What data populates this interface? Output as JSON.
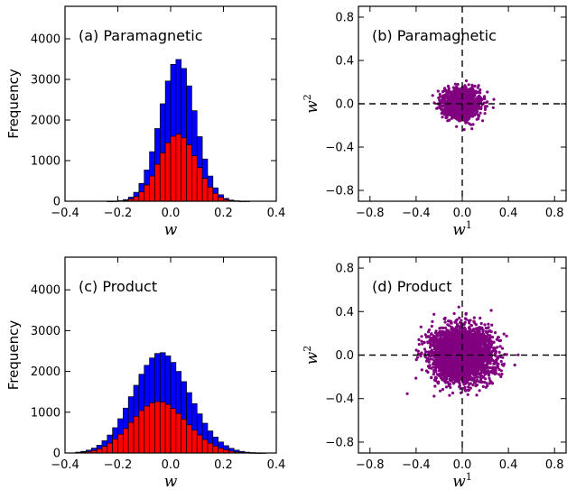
{
  "chart_data": [
    {
      "id": "a",
      "type": "bar",
      "title": "(a)   Paramagnetic",
      "xlabel": "w",
      "ylabel": "Frequency",
      "xlim": [
        -0.4,
        0.4
      ],
      "ylim": [
        0,
        4800
      ],
      "xticks": [
        "−0.4",
        "−0.2",
        "0.0",
        "0.2",
        "0.4"
      ],
      "yticks": [
        "0",
        "1000",
        "2000",
        "3000",
        "4000"
      ],
      "bin_width": 0.02,
      "bin_start": -0.36,
      "series": [
        {
          "color": "#0000ff",
          "values": [
            0,
            0,
            0,
            0,
            0,
            0,
            2,
            5,
            15,
            40,
            100,
            220,
            440,
            770,
            1220,
            1790,
            2400,
            2960,
            3370,
            3490,
            3270,
            2840,
            2230,
            1590,
            1040,
            620,
            330,
            160,
            70,
            28,
            10,
            3,
            1,
            0,
            0,
            0
          ]
        },
        {
          "color": "#ff0000",
          "values": [
            0,
            0,
            0,
            0,
            0,
            0,
            1,
            3,
            8,
            20,
            55,
            115,
            230,
            400,
            620,
            910,
            1190,
            1440,
            1600,
            1650,
            1560,
            1390,
            1120,
            830,
            560,
            350,
            190,
            95,
            40,
            16,
            6,
            2,
            0,
            0,
            0,
            0
          ]
        }
      ]
    },
    {
      "id": "b",
      "type": "scatter",
      "title": "(b)   Paramagnetic",
      "xlabel": "w",
      "xlabel_sup": "1",
      "ylabel": "w",
      "ylabel_sup": "2",
      "xlim": [
        -0.9,
        0.9
      ],
      "ylim": [
        -0.9,
        0.9
      ],
      "xticks": [
        "−0.8",
        "−0.4",
        "0.0",
        "0.4",
        "0.8"
      ],
      "yticks": [
        "−0.8",
        "−0.4",
        "0.0",
        "0.4",
        "0.8"
      ],
      "color": "#800080",
      "center": [
        -0.01,
        0.0
      ],
      "spread": [
        0.075,
        0.065
      ],
      "points": 1800
    },
    {
      "id": "c",
      "type": "bar",
      "title": "(c)   Product",
      "xlabel": "w",
      "ylabel": "Frequency",
      "xlim": [
        -0.4,
        0.4
      ],
      "ylim": [
        0,
        4800
      ],
      "xticks": [
        "−0.4",
        "−0.2",
        "0.0",
        "0.2",
        "0.4"
      ],
      "yticks": [
        "0",
        "1000",
        "2000",
        "3000",
        "4000"
      ],
      "bin_width": 0.02,
      "bin_start": -0.36,
      "series": [
        {
          "color": "#0000ff",
          "values": [
            20,
            40,
            70,
            120,
            190,
            300,
            440,
            620,
            840,
            1100,
            1380,
            1660,
            1930,
            2150,
            2330,
            2440,
            2460,
            2380,
            2220,
            2000,
            1750,
            1480,
            1210,
            960,
            730,
            540,
            390,
            270,
            180,
            115,
            70,
            40,
            20,
            10,
            4,
            1
          ]
        },
        {
          "color": "#ff0000",
          "values": [
            10,
            20,
            35,
            60,
            100,
            160,
            240,
            340,
            460,
            600,
            750,
            900,
            1040,
            1150,
            1230,
            1260,
            1250,
            1190,
            1090,
            970,
            830,
            690,
            560,
            440,
            330,
            240,
            170,
            115,
            75,
            45,
            25,
            14,
            7,
            3,
            1,
            0
          ]
        }
      ]
    },
    {
      "id": "d",
      "type": "scatter",
      "title": "(d)   Product",
      "xlabel": "w",
      "xlabel_sup": "1",
      "ylabel": "w",
      "ylabel_sup": "2",
      "xlim": [
        -0.9,
        0.9
      ],
      "ylim": [
        -0.9,
        0.9
      ],
      "xticks": [
        "−0.8",
        "−0.4",
        "0.0",
        "0.4",
        "0.8"
      ],
      "yticks": [
        "−0.8",
        "−0.4",
        "0.0",
        "0.4",
        "0.8"
      ],
      "color": "#800080",
      "center": [
        0.0,
        0.0
      ],
      "spread": [
        0.125,
        0.12
      ],
      "points": 3800
    }
  ]
}
